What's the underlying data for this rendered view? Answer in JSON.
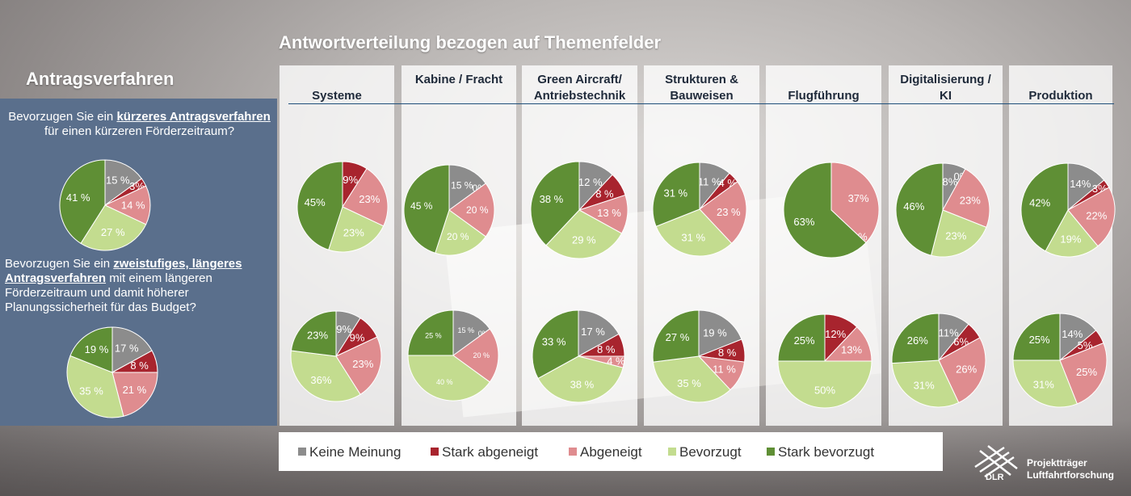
{
  "title": "Antwortverteilung bezogen auf Themenfelder",
  "section_title": "Antragsverfahren",
  "question1": {
    "pre": "Bevorzugen Sie ein ",
    "bold": "kürzeres Antragsverfahren",
    "post": " für einen kürzeren Förderzeitraum?"
  },
  "question2": {
    "pre": "Bevorzugen Sie ein ",
    "bold": "zweistufiges, längeres Antragsverfahren",
    "post": " mit einem längeren Förderzeitraum und damit höherer Planungssicherheit für das Budget?"
  },
  "colors": {
    "Keine Meinung": "#8c8c8c",
    "Stark abgeneigt": "#a8242e",
    "Abgeneigt": "#df8c8f",
    "Bevorzugt": "#c3dc8f",
    "Stark bevorzugt": "#5f8f35"
  },
  "legend": [
    "Keine Meinung",
    "Stark abgeneigt",
    "Abgeneigt",
    "Bevorzugt",
    "Stark bevorzugt"
  ],
  "columns": [
    "Systeme",
    "Kabine / Fracht",
    "Green Aircraft/ Antriebstechnik",
    "Strukturen & Bauweisen",
    "Flugführung",
    "Digitalisierung / KI",
    "Produktion"
  ],
  "chart_data": [
    {
      "type": "pie",
      "panel": "Gesamt",
      "question": 1,
      "categories": [
        "Keine Meinung",
        "Stark abgeneigt",
        "Abgeneigt",
        "Bevorzugt",
        "Stark bevorzugt"
      ],
      "values": [
        15,
        3,
        14,
        27,
        41
      ],
      "labels": [
        "15 %",
        "3%",
        "14 %",
        "27 %",
        "41 %"
      ]
    },
    {
      "type": "pie",
      "panel": "Gesamt",
      "question": 2,
      "categories": [
        "Keine Meinung",
        "Stark abgeneigt",
        "Abgeneigt",
        "Bevorzugt",
        "Stark bevorzugt"
      ],
      "values": [
        17,
        8,
        21,
        35,
        19
      ],
      "labels": [
        "17 %",
        "8 %",
        "21 %",
        "35 %",
        "19 %"
      ]
    },
    {
      "type": "pie",
      "panel": "Systeme",
      "question": 1,
      "categories": [
        "Keine Meinung",
        "Stark abgeneigt",
        "Abgeneigt",
        "Bevorzugt",
        "Stark bevorzugt"
      ],
      "values": [
        0,
        9,
        23,
        23,
        45
      ],
      "labels": [
        "0%",
        "9%",
        "23%",
        "23%",
        "45%"
      ]
    },
    {
      "type": "pie",
      "panel": "Systeme",
      "question": 2,
      "categories": [
        "Keine Meinung",
        "Stark abgeneigt",
        "Abgeneigt",
        "Bevorzugt",
        "Stark bevorzugt"
      ],
      "values": [
        9,
        9,
        23,
        36,
        23
      ],
      "labels": [
        "9%",
        "9%",
        "23%",
        "36%",
        "23%"
      ]
    },
    {
      "type": "pie",
      "panel": "Kabine / Fracht",
      "question": 1,
      "categories": [
        "Keine Meinung",
        "Stark abgeneigt",
        "Abgeneigt",
        "Bevorzugt",
        "Stark bevorzugt"
      ],
      "values": [
        15,
        0,
        20,
        20,
        45
      ],
      "labels": [
        "15 %",
        "0%",
        "20 %",
        "20 %",
        "45 %"
      ]
    },
    {
      "type": "pie",
      "panel": "Kabine / Fracht",
      "question": 2,
      "categories": [
        "Keine Meinung",
        "Stark abgeneigt",
        "Abgeneigt",
        "Bevorzugt",
        "Stark bevorzugt"
      ],
      "values": [
        15,
        0,
        20,
        40,
        25
      ],
      "labels": [
        "15 %",
        "0%",
        "20 %",
        "40 %",
        "25 %"
      ]
    },
    {
      "type": "pie",
      "panel": "Green Aircraft/ Antriebstechnik",
      "question": 1,
      "categories": [
        "Keine Meinung",
        "Stark abgeneigt",
        "Abgeneigt",
        "Bevorzugt",
        "Stark bevorzugt"
      ],
      "values": [
        12,
        8,
        13,
        29,
        38
      ],
      "labels": [
        "12 %",
        "8 %",
        "13 %",
        "29 %",
        "38 %"
      ]
    },
    {
      "type": "pie",
      "panel": "Green Aircraft/ Antriebstechnik",
      "question": 2,
      "categories": [
        "Keine Meinung",
        "Stark abgeneigt",
        "Abgeneigt",
        "Bevorzugt",
        "Stark bevorzugt"
      ],
      "values": [
        17,
        8,
        4,
        38,
        33
      ],
      "labels": [
        "17 %",
        "8 %",
        "4 %",
        "38 %",
        "33 %"
      ]
    },
    {
      "type": "pie",
      "panel": "Strukturen & Bauweisen",
      "question": 1,
      "categories": [
        "Keine Meinung",
        "Stark abgeneigt",
        "Abgeneigt",
        "Bevorzugt",
        "Stark bevorzugt"
      ],
      "values": [
        11,
        4,
        23,
        31,
        31
      ],
      "labels": [
        "11 %",
        "4 %",
        "23 %",
        "31 %",
        "31 %"
      ]
    },
    {
      "type": "pie",
      "panel": "Strukturen & Bauweisen",
      "question": 2,
      "categories": [
        "Keine Meinung",
        "Stark abgeneigt",
        "Abgeneigt",
        "Bevorzugt",
        "Stark bevorzugt"
      ],
      "values": [
        19,
        8,
        11,
        35,
        27
      ],
      "labels": [
        "19 %",
        "8 %",
        "11 %",
        "35 %",
        "27 %"
      ]
    },
    {
      "type": "pie",
      "panel": "Flugführung",
      "question": 1,
      "categories": [
        "Keine Meinung",
        "Stark abgeneigt",
        "Abgeneigt",
        "Bevorzugt",
        "Stark bevorzugt"
      ],
      "values": [
        0,
        0,
        37,
        0,
        63
      ],
      "labels": [
        "0%",
        "0%",
        "37%",
        "0%",
        "63%"
      ]
    },
    {
      "type": "pie",
      "panel": "Flugführung",
      "question": 2,
      "categories": [
        "Keine Meinung",
        "Stark abgeneigt",
        "Abgeneigt",
        "Bevorzugt",
        "Stark bevorzugt"
      ],
      "values": [
        0,
        12,
        13,
        50,
        25
      ],
      "labels": [
        "0%",
        "12%",
        "13%",
        "50%",
        "25%"
      ]
    },
    {
      "type": "pie",
      "panel": "Digitalisierung / KI",
      "question": 1,
      "categories": [
        "Keine Meinung",
        "Stark abgeneigt",
        "Abgeneigt",
        "Bevorzugt",
        "Stark bevorzugt"
      ],
      "values": [
        8,
        0,
        23,
        23,
        46
      ],
      "labels": [
        "8%",
        "0%",
        "23%",
        "23%",
        "46%"
      ]
    },
    {
      "type": "pie",
      "panel": "Digitalisierung / KI",
      "question": 2,
      "categories": [
        "Keine Meinung",
        "Stark abgeneigt",
        "Abgeneigt",
        "Bevorzugt",
        "Stark bevorzugt"
      ],
      "values": [
        11,
        6,
        26,
        31,
        26
      ],
      "labels": [
        "11%",
        "6%",
        "26%",
        "31%",
        "26%"
      ]
    },
    {
      "type": "pie",
      "panel": "Produktion",
      "question": 1,
      "categories": [
        "Keine Meinung",
        "Stark abgeneigt",
        "Abgeneigt",
        "Bevorzugt",
        "Stark bevorzugt"
      ],
      "values": [
        14,
        3,
        22,
        19,
        42
      ],
      "labels": [
        "14%",
        "3%",
        "22%",
        "19%",
        "42%"
      ]
    },
    {
      "type": "pie",
      "panel": "Produktion",
      "question": 2,
      "categories": [
        "Keine Meinung",
        "Stark abgeneigt",
        "Abgeneigt",
        "Bevorzugt",
        "Stark bevorzugt"
      ],
      "values": [
        14,
        5,
        25,
        31,
        25
      ],
      "labels": [
        "14%",
        "5%",
        "25%",
        "31%",
        "25%"
      ]
    }
  ],
  "logo": {
    "line1": "Projektträger",
    "line2": "Luftfahrtforschung",
    "mark": "DLR"
  }
}
